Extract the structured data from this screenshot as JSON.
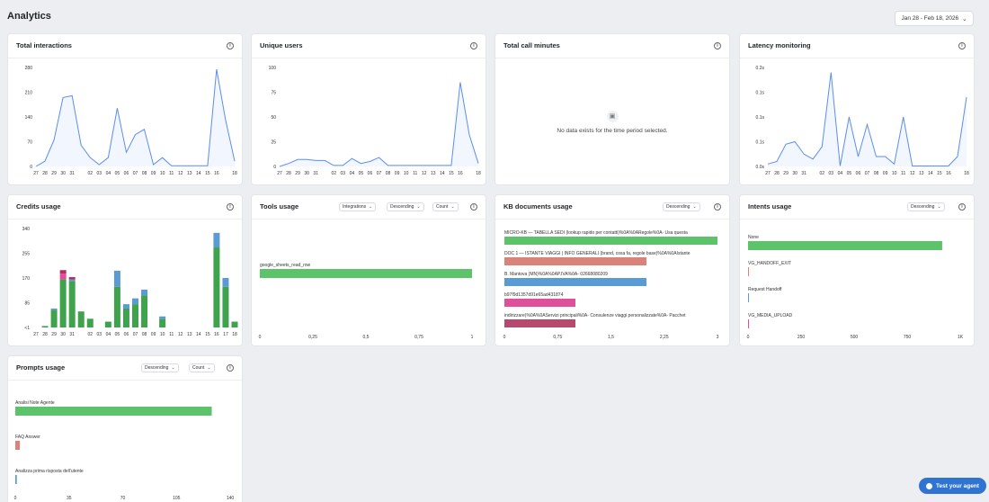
{
  "header": {
    "title": "Analytics",
    "date_range": "Jan 28 - Feb 18, 2026"
  },
  "cards": {
    "total_interactions": {
      "title": "Total interactions"
    },
    "unique_users": {
      "title": "Unique users"
    },
    "total_call_minutes": {
      "title": "Total call minutes",
      "empty_text": "No data exists for the time period selected."
    },
    "latency_monitoring": {
      "title": "Latency monitoring"
    },
    "credits_usage": {
      "title": "Credits usage"
    },
    "tools_usage": {
      "title": "Tools usage",
      "filter_type": "Integrations",
      "sort": "Descending",
      "metric": "Count"
    },
    "kb_documents_usage": {
      "title": "KB documents usage",
      "sort": "Descending"
    },
    "intents_usage": {
      "title": "Intents usage",
      "sort": "Descending"
    },
    "prompts_usage": {
      "title": "Prompts usage",
      "sort": "Descending",
      "metric": "Count"
    }
  },
  "test_agent": {
    "label": "Test your agent"
  },
  "colors": {
    "line": "#5b8def",
    "green": "#5cc36a",
    "credits_green": "#3fa34d",
    "credits_blue": "#5b9bd5",
    "credits_pink": "#e04f9a",
    "credits_maroon": "#b03060",
    "salmon": "#d9837a",
    "blue": "#5b9bd5",
    "pink": "#e04f9a",
    "maroon": "#b8486e"
  },
  "chart_data": [
    {
      "id": "total_interactions",
      "type": "line",
      "x": [
        "27",
        "28",
        "29",
        "30",
        "31",
        "01",
        "02",
        "03",
        "04",
        "05",
        "06",
        "07",
        "08",
        "09",
        "10",
        "11",
        "12",
        "13",
        "14",
        "15",
        "16",
        "17",
        "18"
      ],
      "x_ticks": [
        "27",
        "28",
        "29",
        "30",
        "31",
        "",
        "02",
        "03",
        "04",
        "05",
        "06",
        "07",
        "08",
        "09",
        "10",
        "11",
        "12",
        "13",
        "14",
        "15",
        "16",
        "",
        "18"
      ],
      "y": [
        0,
        15,
        75,
        195,
        200,
        60,
        25,
        5,
        25,
        165,
        40,
        90,
        105,
        5,
        25,
        2,
        2,
        2,
        2,
        2,
        275,
        130,
        15
      ],
      "y_ticks": [
        0,
        70,
        140,
        210,
        280
      ],
      "ylim": [
        0,
        280
      ]
    },
    {
      "id": "unique_users",
      "type": "line",
      "x": [
        "27",
        "28",
        "29",
        "30",
        "31",
        "01",
        "02",
        "03",
        "04",
        "05",
        "06",
        "07",
        "08",
        "09",
        "10",
        "11",
        "12",
        "13",
        "14",
        "15",
        "16",
        "17",
        "18"
      ],
      "x_ticks": [
        "27",
        "28",
        "29",
        "30",
        "31",
        "",
        "02",
        "03",
        "04",
        "05",
        "06",
        "07",
        "08",
        "09",
        "10",
        "11",
        "12",
        "13",
        "14",
        "15",
        "16",
        "",
        "18"
      ],
      "y": [
        0,
        3,
        7,
        7,
        6,
        6,
        1,
        1,
        8,
        3,
        5,
        9,
        1,
        1,
        1,
        1,
        1,
        1,
        1,
        1,
        85,
        32,
        3
      ],
      "y_ticks": [
        0,
        25,
        50,
        75,
        100
      ],
      "ylim": [
        0,
        100
      ]
    },
    {
      "id": "latency_monitoring",
      "type": "line",
      "x": [
        "27",
        "28",
        "29",
        "30",
        "31",
        "01",
        "02",
        "03",
        "04",
        "05",
        "06",
        "07",
        "08",
        "09",
        "10",
        "11",
        "12",
        "13",
        "14",
        "15",
        "16",
        "17",
        "18"
      ],
      "x_ticks": [
        "27",
        "28",
        "29",
        "30",
        "31",
        "",
        "02",
        "03",
        "04",
        "05",
        "06",
        "07",
        "08",
        "09",
        "10",
        "11",
        "12",
        "13",
        "14",
        "15",
        "16",
        "",
        "18"
      ],
      "y": [
        0.005,
        0.01,
        0.045,
        0.05,
        0.025,
        0.015,
        0.04,
        0.19,
        0.001,
        0.1,
        0.02,
        0.085,
        0.02,
        0.02,
        0.005,
        0.1,
        0.001,
        0.001,
        0.001,
        0.001,
        0.001,
        0.02,
        0.14
      ],
      "y_tick_labels": [
        "0.0s",
        "0.1s",
        "0.1s",
        "0.1s",
        "0.2s"
      ],
      "ylim": [
        0,
        0.2
      ]
    },
    {
      "id": "credits_usage",
      "type": "bar",
      "x_ticks": [
        "27",
        "28",
        "29",
        "30",
        "31",
        "",
        "02",
        "03",
        "04",
        "05",
        "06",
        "07",
        "08",
        "09",
        "10",
        "11",
        "12",
        "13",
        "14",
        "15",
        "16",
        "17",
        "18"
      ],
      "series": [
        {
          "color_key": "credits_green",
          "values": [
            0,
            5,
            60,
            165,
            160,
            55,
            30,
            0,
            20,
            140,
            65,
            80,
            110,
            0,
            30,
            0,
            0,
            0,
            0,
            0,
            275,
            140,
            20
          ]
        },
        {
          "color_key": "credits_blue",
          "values": [
            0,
            0,
            5,
            0,
            5,
            0,
            0,
            0,
            0,
            55,
            15,
            20,
            20,
            0,
            8,
            0,
            0,
            0,
            0,
            0,
            50,
            30,
            0
          ]
        },
        {
          "color_key": "credits_pink",
          "values": [
            0,
            0,
            0,
            20,
            0,
            0,
            0,
            0,
            0,
            0,
            0,
            0,
            0,
            0,
            0,
            0,
            0,
            0,
            0,
            0,
            0,
            0,
            0
          ]
        },
        {
          "color_key": "credits_maroon",
          "values": [
            0,
            0,
            0,
            12,
            8,
            0,
            0,
            0,
            0,
            0,
            0,
            0,
            0,
            0,
            0,
            0,
            0,
            0,
            0,
            0,
            0,
            0,
            0
          ]
        }
      ],
      "y_tick_labels": [
        "<1",
        "85",
        "170",
        "255",
        "340"
      ],
      "ylim": [
        0,
        340
      ]
    },
    {
      "id": "tools_usage",
      "type": "bar",
      "orientation": "horizontal",
      "categories": [
        "google_sheets_read_row"
      ],
      "values": [
        1
      ],
      "color_keys": [
        "green"
      ],
      "x_tick_labels": [
        "0",
        "0,25",
        "0,5",
        "0,75",
        "1"
      ],
      "xlim": [
        0,
        1
      ]
    },
    {
      "id": "kb_documents_usage",
      "type": "bar",
      "orientation": "horizontal",
      "categories": [
        "MICRO-KB — TABELLA SEDI (lookup rapido per contatti)%0A%0ARegole%0A- Usa questa",
        "DOC 1 — ISTANTE VIAGGI | INFO GENERALI (brand, cosa fa, regole base)%0A%0AIstante",
        "B. Mantova (MN)%0A%0AP.IVA%0A- 02668080209",
        "b97f9d1357d91e65ad431874",
        "indirizzare)%0A%0AServizi principali%0A- Consulenze viaggi personalizzate%0A- Pacchet"
      ],
      "values": [
        3,
        2,
        2,
        1,
        1
      ],
      "color_keys": [
        "green",
        "salmon",
        "blue",
        "pink",
        "maroon"
      ],
      "x_tick_labels": [
        "0",
        "0,75",
        "1,5",
        "2,25",
        "3"
      ],
      "xlim": [
        0,
        3
      ]
    },
    {
      "id": "intents_usage",
      "type": "bar",
      "orientation": "horizontal",
      "categories": [
        "None",
        "VG_HANDOFF_EXIT",
        "Request Handoff",
        "VG_MEDIA_UPLOAD"
      ],
      "values": [
        915,
        3,
        3,
        1
      ],
      "color_keys": [
        "green",
        "salmon",
        "blue",
        "pink"
      ],
      "x_tick_labels": [
        "0",
        "250",
        "500",
        "750",
        "1K"
      ],
      "xlim": [
        0,
        1000
      ]
    },
    {
      "id": "prompts_usage",
      "type": "bar",
      "orientation": "horizontal",
      "categories": [
        "Analisi Note Agente",
        "FAQ Answer",
        "Analizza prima risposta dell'utente"
      ],
      "values": [
        128,
        3,
        1
      ],
      "color_keys": [
        "green",
        "salmon",
        "blue"
      ],
      "x_tick_labels": [
        "0",
        "35",
        "70",
        "105",
        "140"
      ],
      "xlim": [
        0,
        140
      ]
    }
  ]
}
